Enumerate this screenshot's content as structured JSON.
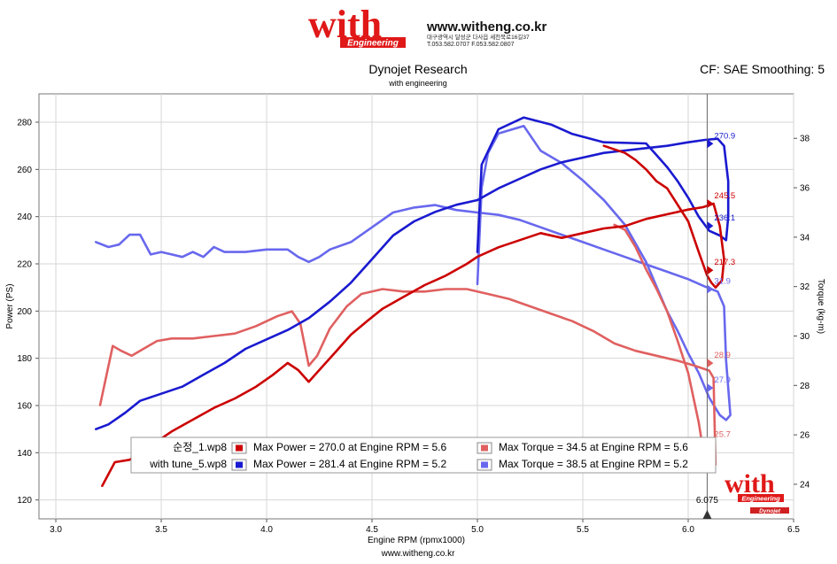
{
  "header": {
    "logo_word": "with",
    "logo_sub": "Engineering",
    "url": "www.witheng.co.kr",
    "address": "대구광역시 달성군 다사읍 세천북로16길37",
    "phone": "T.053.582.0707 F.053.582.0807"
  },
  "chart_header": {
    "title": "Dynojet Research",
    "subtitle": "with engineering",
    "cf_text": "CF: SAE Smoothing: 5"
  },
  "footer": {
    "url": "www.witheng.co.kr",
    "brand_word": "with",
    "brand_sub": "Engineering",
    "dynojet_mark": "Dynojet"
  },
  "legend": {
    "rows": [
      {
        "file": "순정_1.wp8",
        "power_text": "Max Power = 270.0 at Engine RPM = 5.6",
        "torque_text": "Max Torque = 34.5 at Engine RPM = 5.6",
        "power_color": "#cc0000",
        "torque_color": "#e06060"
      },
      {
        "file": "with tune_5.wp8",
        "power_text": "Max Power = 281.4 at Engine RPM = 5.2",
        "torque_text": "Max Torque = 38.5 at Engine RPM = 5.2",
        "power_color": "#1a1ad0",
        "torque_color": "#6868ee"
      }
    ]
  },
  "cursor": {
    "rpm_label": "6.075"
  },
  "chart_data": {
    "type": "line",
    "xlabel": "Engine RPM (rpmx1000)",
    "ylabel": "Power (PS)",
    "y2label": "Torque (kg-m)",
    "xlim": [
      2.92,
      6.5
    ],
    "ylim": [
      112,
      292
    ],
    "y2lim": [
      22.6,
      39.8
    ],
    "xticks": [
      3.0,
      3.5,
      4.0,
      4.5,
      5.0,
      5.5,
      6.0,
      6.5
    ],
    "xtick_labels": [
      "3.0",
      "3.5",
      "4.0",
      "4.5",
      "5.0",
      "5.5",
      "6.0",
      "6.5"
    ],
    "yticks": [
      120,
      140,
      160,
      180,
      200,
      220,
      240,
      260,
      280
    ],
    "y2ticks": [
      24,
      26,
      28,
      30,
      32,
      34,
      36,
      38
    ],
    "grid": true,
    "cursor_x": 6.09,
    "series": [
      {
        "name": "순정_1.wp8",
        "axis": "y",
        "color": "#cc0000",
        "points": [
          [
            3.22,
            126
          ],
          [
            3.28,
            136
          ],
          [
            3.35,
            137
          ],
          [
            3.45,
            143
          ],
          [
            3.55,
            149
          ],
          [
            3.65,
            154
          ],
          [
            3.75,
            159
          ],
          [
            3.85,
            163
          ],
          [
            3.95,
            168
          ],
          [
            4.03,
            173
          ],
          [
            4.1,
            178
          ],
          [
            4.15,
            175
          ],
          [
            4.2,
            170
          ],
          [
            4.26,
            176
          ],
          [
            4.33,
            183
          ],
          [
            4.4,
            190
          ],
          [
            4.48,
            196
          ],
          [
            4.55,
            201
          ],
          [
            4.65,
            206
          ],
          [
            4.75,
            211
          ],
          [
            4.85,
            215
          ],
          [
            4.95,
            220
          ],
          [
            5.0,
            223
          ],
          [
            5.1,
            227
          ],
          [
            5.2,
            230
          ],
          [
            5.3,
            233
          ],
          [
            5.4,
            231
          ],
          [
            5.5,
            233
          ],
          [
            5.6,
            235
          ],
          [
            5.7,
            236
          ],
          [
            5.8,
            239
          ],
          [
            5.9,
            241
          ],
          [
            6.0,
            243
          ],
          [
            6.07,
            244
          ],
          [
            6.12,
            245.5
          ],
          [
            6.15,
            236
          ],
          [
            6.17,
            222
          ],
          [
            6.16,
            213
          ],
          [
            6.13,
            210
          ],
          [
            6.11,
            212
          ],
          [
            6.09,
            215
          ],
          [
            6.05,
            225
          ],
          [
            6.0,
            238
          ],
          [
            5.95,
            245
          ],
          [
            5.9,
            252
          ],
          [
            5.85,
            255
          ],
          [
            5.8,
            260
          ],
          [
            5.75,
            264
          ],
          [
            5.7,
            267
          ],
          [
            5.6,
            270
          ]
        ]
      },
      {
        "name": "with tune_5.wp8",
        "axis": "y",
        "color": "#1a1ad0",
        "points": [
          [
            3.19,
            150
          ],
          [
            3.25,
            152
          ],
          [
            3.33,
            157
          ],
          [
            3.4,
            162
          ],
          [
            3.5,
            165
          ],
          [
            3.6,
            168
          ],
          [
            3.7,
            173
          ],
          [
            3.8,
            178
          ],
          [
            3.9,
            184
          ],
          [
            4.0,
            188
          ],
          [
            4.1,
            192
          ],
          [
            4.2,
            197
          ],
          [
            4.3,
            204
          ],
          [
            4.4,
            212
          ],
          [
            4.5,
            222
          ],
          [
            4.6,
            232
          ],
          [
            4.7,
            238
          ],
          [
            4.8,
            242
          ],
          [
            4.9,
            245
          ],
          [
            5.0,
            247
          ],
          [
            5.1,
            252
          ],
          [
            5.2,
            256
          ],
          [
            5.3,
            260
          ],
          [
            5.4,
            263
          ],
          [
            5.5,
            265
          ],
          [
            5.6,
            267
          ],
          [
            5.7,
            268
          ],
          [
            5.8,
            269
          ],
          [
            5.9,
            270
          ],
          [
            6.0,
            271.5
          ],
          [
            6.08,
            272.5
          ],
          [
            6.14,
            273
          ],
          [
            6.17,
            270
          ],
          [
            6.19,
            255
          ],
          [
            6.19,
            240
          ],
          [
            6.18,
            230
          ],
          [
            6.15,
            232
          ],
          [
            6.1,
            234
          ],
          [
            6.05,
            240
          ],
          [
            6.0,
            248
          ],
          [
            5.95,
            255
          ],
          [
            5.9,
            261
          ],
          [
            5.85,
            266
          ],
          [
            5.8,
            271
          ],
          [
            5.6,
            271.5
          ],
          [
            5.45,
            275
          ],
          [
            5.35,
            279
          ],
          [
            5.22,
            282
          ],
          [
            5.1,
            277
          ],
          [
            5.02,
            262
          ],
          [
            5.0,
            225
          ]
        ]
      },
      {
        "name": "순정_1.wp8 torque",
        "axis": "y2",
        "color": "#e06060",
        "points": [
          [
            3.21,
            27.2
          ],
          [
            3.27,
            29.6
          ],
          [
            3.31,
            29.4
          ],
          [
            3.36,
            29.2
          ],
          [
            3.42,
            29.5
          ],
          [
            3.48,
            29.8
          ],
          [
            3.55,
            29.9
          ],
          [
            3.65,
            29.9
          ],
          [
            3.75,
            30.0
          ],
          [
            3.85,
            30.1
          ],
          [
            3.95,
            30.4
          ],
          [
            4.05,
            30.8
          ],
          [
            4.12,
            31.0
          ],
          [
            4.16,
            30.5
          ],
          [
            4.2,
            28.8
          ],
          [
            4.24,
            29.2
          ],
          [
            4.3,
            30.3
          ],
          [
            4.38,
            31.2
          ],
          [
            4.45,
            31.7
          ],
          [
            4.55,
            31.9
          ],
          [
            4.65,
            31.8
          ],
          [
            4.75,
            31.8
          ],
          [
            4.85,
            31.9
          ],
          [
            4.95,
            31.9
          ],
          [
            5.05,
            31.7
          ],
          [
            5.15,
            31.5
          ],
          [
            5.25,
            31.2
          ],
          [
            5.35,
            30.9
          ],
          [
            5.45,
            30.6
          ],
          [
            5.55,
            30.2
          ],
          [
            5.65,
            29.7
          ],
          [
            5.75,
            29.4
          ],
          [
            5.85,
            29.2
          ],
          [
            5.95,
            29.0
          ],
          [
            6.03,
            28.8
          ],
          [
            6.1,
            28.6
          ],
          [
            6.12,
            28.3
          ],
          [
            6.13,
            24.8
          ],
          [
            6.11,
            24.5
          ],
          [
            6.08,
            24.9
          ],
          [
            6.05,
            26.5
          ],
          [
            6.0,
            28.5
          ],
          [
            5.95,
            29.8
          ],
          [
            5.9,
            31.0
          ],
          [
            5.85,
            31.9
          ],
          [
            5.8,
            32.7
          ],
          [
            5.75,
            33.6
          ],
          [
            5.7,
            34.3
          ],
          [
            5.65,
            34.5
          ]
        ]
      },
      {
        "name": "with tune_5.wp8 torque",
        "axis": "y2",
        "color": "#6868ee",
        "points": [
          [
            3.19,
            33.8
          ],
          [
            3.25,
            33.6
          ],
          [
            3.3,
            33.7
          ],
          [
            3.35,
            34.1
          ],
          [
            3.4,
            34.1
          ],
          [
            3.45,
            33.3
          ],
          [
            3.5,
            33.4
          ],
          [
            3.55,
            33.3
          ],
          [
            3.6,
            33.2
          ],
          [
            3.65,
            33.4
          ],
          [
            3.7,
            33.2
          ],
          [
            3.75,
            33.6
          ],
          [
            3.8,
            33.4
          ],
          [
            3.9,
            33.4
          ],
          [
            4.0,
            33.5
          ],
          [
            4.1,
            33.5
          ],
          [
            4.15,
            33.2
          ],
          [
            4.2,
            33.0
          ],
          [
            4.25,
            33.2
          ],
          [
            4.3,
            33.5
          ],
          [
            4.4,
            33.8
          ],
          [
            4.5,
            34.4
          ],
          [
            4.6,
            35.0
          ],
          [
            4.7,
            35.2
          ],
          [
            4.8,
            35.3
          ],
          [
            4.9,
            35.1
          ],
          [
            5.0,
            35.0
          ],
          [
            5.1,
            34.9
          ],
          [
            5.2,
            34.7
          ],
          [
            5.3,
            34.4
          ],
          [
            5.4,
            34.1
          ],
          [
            5.5,
            33.8
          ],
          [
            5.6,
            33.5
          ],
          [
            5.7,
            33.2
          ],
          [
            5.8,
            32.9
          ],
          [
            5.9,
            32.6
          ],
          [
            6.0,
            32.3
          ],
          [
            6.08,
            32.0
          ],
          [
            6.14,
            31.8
          ],
          [
            6.17,
            31.2
          ],
          [
            6.18,
            29.0
          ],
          [
            6.2,
            26.8
          ],
          [
            6.18,
            26.6
          ],
          [
            6.15,
            26.8
          ],
          [
            6.1,
            27.5
          ],
          [
            6.05,
            28.5
          ],
          [
            6.0,
            29.3
          ],
          [
            5.95,
            30.2
          ],
          [
            5.9,
            31.0
          ],
          [
            5.85,
            32.0
          ],
          [
            5.8,
            33.0
          ],
          [
            5.7,
            34.5
          ],
          [
            5.6,
            35.5
          ],
          [
            5.5,
            36.3
          ],
          [
            5.4,
            37.0
          ],
          [
            5.3,
            37.5
          ],
          [
            5.22,
            38.5
          ],
          [
            5.1,
            38.2
          ],
          [
            5.05,
            37.4
          ],
          [
            5.02,
            36.0
          ],
          [
            5.0,
            32.1
          ]
        ]
      }
    ],
    "end_labels": [
      {
        "text": "270.9",
        "x": 6.09,
        "y": 270.9,
        "axis": "y",
        "color": "#1a1ad0"
      },
      {
        "text": "245.5",
        "x": 6.09,
        "y": 245.5,
        "axis": "y",
        "color": "#cc0000"
      },
      {
        "text": "236.1",
        "x": 6.09,
        "y": 236.1,
        "axis": "y",
        "color": "#1a1ad0"
      },
      {
        "text": "217.3",
        "x": 6.09,
        "y": 217.3,
        "axis": "y",
        "color": "#cc0000"
      },
      {
        "text": "31.9",
        "x": 6.09,
        "y": 31.9,
        "axis": "y2",
        "color": "#6868ee"
      },
      {
        "text": "28.9",
        "x": 6.09,
        "y": 28.9,
        "axis": "y2",
        "color": "#e06060"
      },
      {
        "text": "27.9",
        "x": 6.09,
        "y": 27.9,
        "axis": "y2",
        "color": "#6868ee"
      },
      {
        "text": "25.7",
        "x": 6.09,
        "y": 25.7,
        "axis": "y2",
        "color": "#e06060"
      }
    ]
  }
}
